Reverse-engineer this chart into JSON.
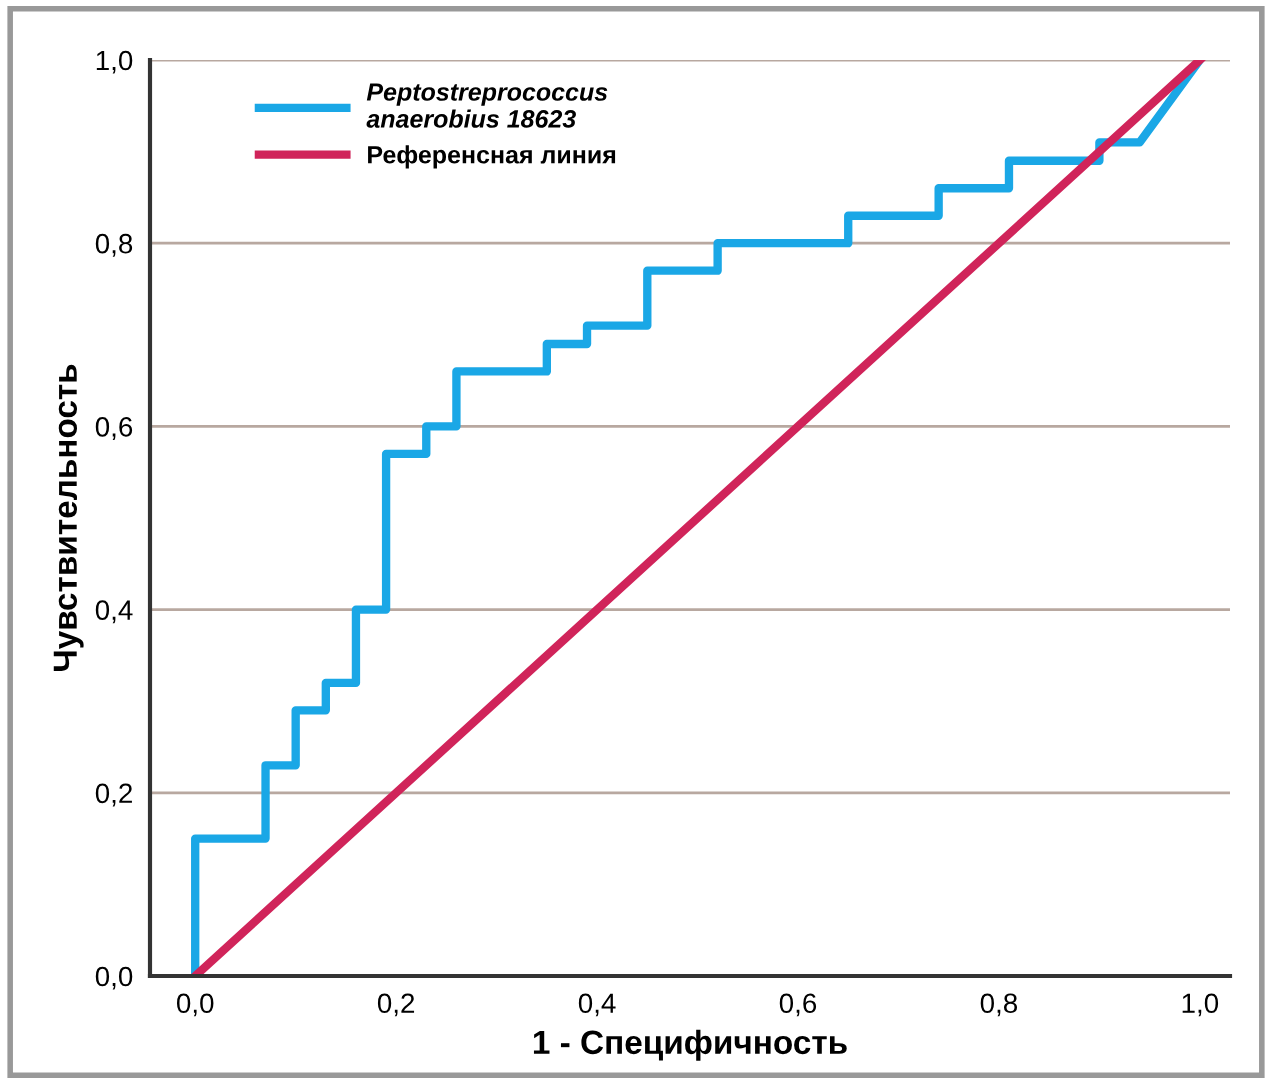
{
  "chart_data": {
    "type": "line",
    "xlabel": "1 - Специфичность",
    "ylabel": "Чувствительность",
    "series": [
      {
        "name": "Peptostreprococcus\nanaerobius 18623",
        "color": "#1aa7e6",
        "x": [
          0,
          0,
          0.07,
          0.07,
          0.1,
          0.1,
          0.13,
          0.13,
          0.16,
          0.16,
          0.19,
          0.19,
          0.23,
          0.23,
          0.26,
          0.26,
          0.35,
          0.35,
          0.39,
          0.39,
          0.45,
          0.45,
          0.52,
          0.52,
          0.65,
          0.65,
          0.74,
          0.74,
          0.81,
          0.81,
          0.9,
          0.9,
          0.94,
          1
        ],
        "values": [
          0,
          0.15,
          0.15,
          0.23,
          0.23,
          0.29,
          0.29,
          0.32,
          0.32,
          0.4,
          0.4,
          0.57,
          0.57,
          0.6,
          0.6,
          0.66,
          0.66,
          0.69,
          0.69,
          0.71,
          0.71,
          0.77,
          0.77,
          0.8,
          0.8,
          0.83,
          0.83,
          0.86,
          0.86,
          0.89,
          0.89,
          0.91,
          0.91,
          1
        ]
      },
      {
        "name": "Референсная линия",
        "color": "#d0245a",
        "x": [
          0,
          1
        ],
        "values": [
          0,
          1
        ]
      }
    ],
    "xlim": [
      -0.045,
      1.03
    ],
    "ylim": [
      0,
      1
    ],
    "xticks": [
      {
        "value": 0,
        "label": "0,0"
      },
      {
        "value": 0.2,
        "label": "0,2"
      },
      {
        "value": 0.4,
        "label": "0,4"
      },
      {
        "value": 0.6,
        "label": "0,6"
      },
      {
        "value": 0.8,
        "label": "0,8"
      },
      {
        "value": 1,
        "label": "1,0"
      }
    ],
    "yticks": [
      {
        "value": 0,
        "label": "0,0"
      },
      {
        "value": 0.2,
        "label": "0,2"
      },
      {
        "value": 0.4,
        "label": "0,4"
      },
      {
        "value": 0.6,
        "label": "0,6"
      },
      {
        "value": 0.8,
        "label": "0,8"
      },
      {
        "value": 1,
        "label": "1,0"
      }
    ],
    "grid": "y",
    "legend": "top left"
  }
}
